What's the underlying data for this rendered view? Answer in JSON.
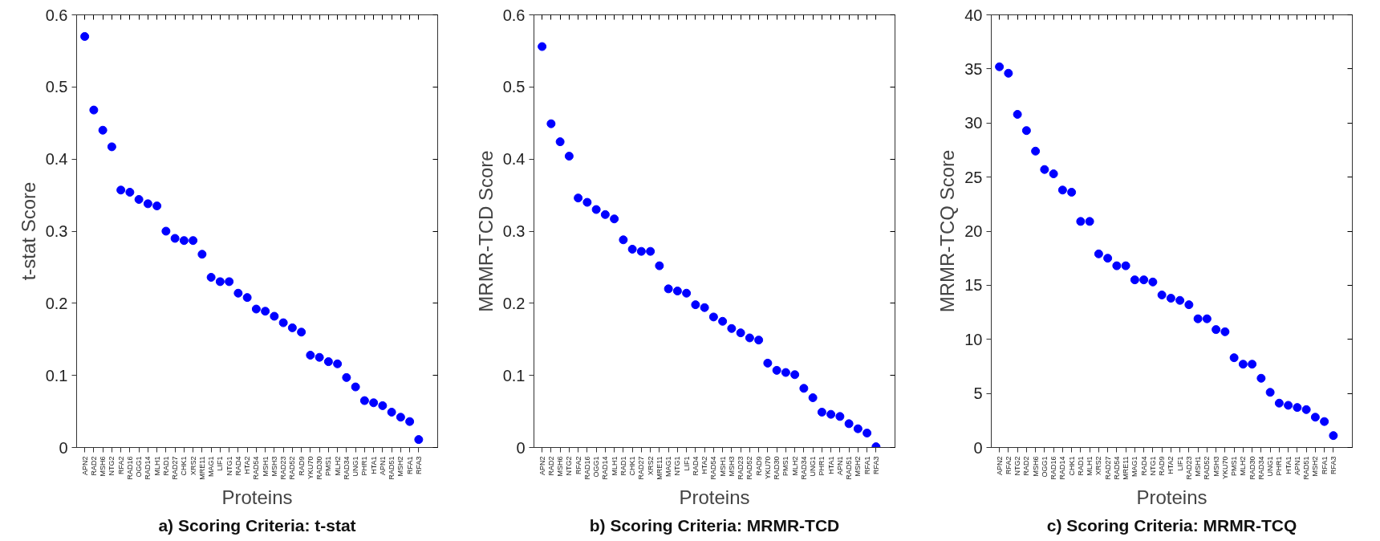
{
  "chart_data": [
    {
      "type": "scatter",
      "xlabel": "Proteins",
      "ylabel": "t-stat Score",
      "annotations": [
        "a) Scoring Criteria: t-stat"
      ],
      "marker": "circle",
      "grid": false,
      "ylim": [
        0,
        0.6
      ],
      "yticks": [
        0,
        0.1,
        0.2,
        0.3,
        0.4,
        0.5,
        0.6
      ],
      "categories": [
        "APN2",
        "RAD2",
        "MSH6",
        "NTG2",
        "RFA2",
        "RAD16",
        "OGG1",
        "RAD14",
        "MLH1",
        "RAD1",
        "RAD27",
        "CHK1",
        "XRS2",
        "MRE11",
        "MAG1",
        "LIF1",
        "NTG1",
        "RAD4",
        "HTA2",
        "RAD54",
        "MSH1",
        "MSH3",
        "RAD23",
        "RAD52",
        "RAD9",
        "YKU70",
        "RAD30",
        "PMS1",
        "MLH2",
        "RAD34",
        "UNG1",
        "PHR1",
        "HTA1",
        "APN1",
        "RAD51",
        "MSH2",
        "RFA1",
        "RFA3"
      ],
      "series": [
        {
          "color": "#0000ff",
          "values": [
            0.57,
            0.468,
            0.44,
            0.417,
            0.357,
            0.354,
            0.344,
            0.338,
            0.335,
            0.3,
            0.29,
            0.287,
            0.287,
            0.268,
            0.236,
            0.23,
            0.23,
            0.214,
            0.208,
            0.192,
            0.189,
            0.182,
            0.173,
            0.166,
            0.16,
            0.128,
            0.125,
            0.119,
            0.116,
            0.097,
            0.084,
            0.065,
            0.062,
            0.058,
            0.049,
            0.042,
            0.036,
            0.011
          ]
        }
      ]
    },
    {
      "type": "scatter",
      "xlabel": "Proteins",
      "ylabel": "MRMR-TCD Score",
      "annotations": [
        "b) Scoring Criteria: MRMR-TCD"
      ],
      "marker": "circle",
      "grid": false,
      "ylim": [
        0,
        0.6
      ],
      "yticks": [
        0,
        0.1,
        0.2,
        0.3,
        0.4,
        0.5,
        0.6
      ],
      "categories": [
        "APN2",
        "RAD2",
        "MSH6",
        "NTG2",
        "RFA2",
        "RAD16",
        "OGG1",
        "RAD14",
        "MLH1",
        "RAD1",
        "CHK1",
        "RAD27",
        "XRS2",
        "MRE11",
        "MAG1",
        "NTG1",
        "LIF1",
        "RAD4",
        "HTA2",
        "RAD54",
        "MSH1",
        "MSH3",
        "RAD23",
        "RAD52",
        "RAD9",
        "YKU70",
        "RAD30",
        "PMS1",
        "MLH2",
        "RAD34",
        "UNG1",
        "PHR1",
        "HTA1",
        "APN1",
        "RAD51",
        "MSH2",
        "RFA1",
        "RFA3"
      ],
      "series": [
        {
          "color": "#0000ff",
          "values": [
            0.556,
            0.449,
            0.424,
            0.404,
            0.346,
            0.34,
            0.33,
            0.323,
            0.317,
            0.288,
            0.275,
            0.272,
            0.272,
            0.252,
            0.22,
            0.217,
            0.214,
            0.198,
            0.194,
            0.181,
            0.175,
            0.165,
            0.159,
            0.152,
            0.149,
            0.117,
            0.107,
            0.104,
            0.101,
            0.082,
            0.069,
            0.049,
            0.046,
            0.043,
            0.033,
            0.026,
            0.02,
            0.001
          ]
        }
      ]
    },
    {
      "type": "scatter",
      "xlabel": "Proteins",
      "ylabel": "MRMR-TCQ Score",
      "annotations": [
        "c) Scoring Criteria: MRMR-TCQ"
      ],
      "marker": "circle",
      "grid": false,
      "ylim": [
        0,
        40
      ],
      "yticks": [
        0,
        5,
        10,
        15,
        20,
        25,
        30,
        35,
        40
      ],
      "categories": [
        "APN2",
        "RFA2",
        "NTG2",
        "RAD2",
        "MSH6",
        "OGG1",
        "RAD16",
        "RAD14",
        "CHK1",
        "RAD1",
        "MLH1",
        "XRS2",
        "RAD27",
        "RAD54",
        "MRE11",
        "MAG1",
        "RAD4",
        "NTG1",
        "RAD9",
        "HTA2",
        "LIF1",
        "RAD23",
        "MSH1",
        "RAD52",
        "MSH3",
        "YKU70",
        "PMS1",
        "MLH2",
        "RAD30",
        "RAD34",
        "UNG1",
        "PHR1",
        "HTA1",
        "APN1",
        "RAD51",
        "MSH2",
        "RFA1",
        "RFA3"
      ],
      "series": [
        {
          "color": "#0000ff",
          "values": [
            35.2,
            34.6,
            30.8,
            29.3,
            27.4,
            25.7,
            25.3,
            23.8,
            23.6,
            20.9,
            20.9,
            17.9,
            17.5,
            16.8,
            16.8,
            15.5,
            15.5,
            15.3,
            14.1,
            13.8,
            13.6,
            13.2,
            11.9,
            11.9,
            10.9,
            10.7,
            8.3,
            7.7,
            7.7,
            6.4,
            5.1,
            4.1,
            3.9,
            3.7,
            3.5,
            2.8,
            2.4,
            1.1
          ]
        }
      ]
    }
  ]
}
